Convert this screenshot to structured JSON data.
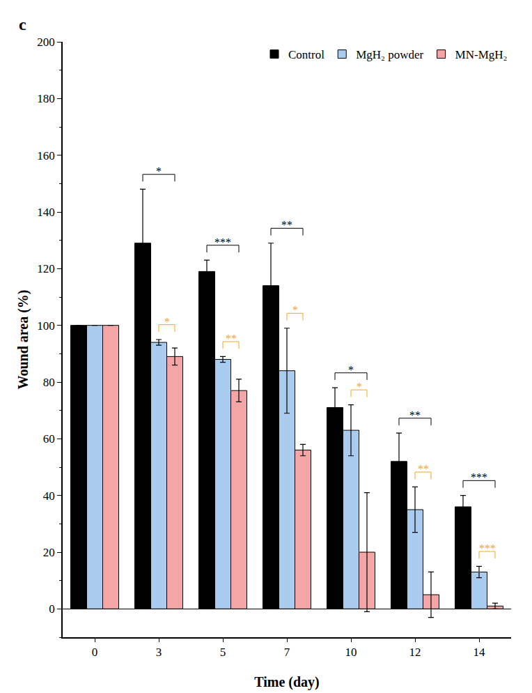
{
  "chart_data": {
    "type": "bar",
    "panel_label": "c",
    "x_label": "Time (day)",
    "y_label": "Wound area (%)",
    "categories": [
      "0",
      "3",
      "5",
      "7",
      "10",
      "12",
      "14"
    ],
    "series": [
      {
        "name": "Control",
        "color": "#000000",
        "values": [
          100,
          129,
          119,
          114,
          71,
          52,
          36
        ],
        "errors": [
          0,
          19,
          4,
          15,
          7,
          10,
          4
        ]
      },
      {
        "name": "MgH₂ powder",
        "color": "#a9cbee",
        "values": [
          100,
          94,
          88,
          84,
          63,
          35,
          13
        ],
        "errors": [
          0,
          1,
          1,
          15,
          9,
          8,
          2
        ]
      },
      {
        "name": "MN-MgH₂",
        "color": "#f4a6a6",
        "values": [
          100,
          89,
          77,
          56,
          20,
          5,
          1
        ],
        "errors": [
          0,
          3,
          4,
          2,
          21,
          8,
          1
        ]
      }
    ],
    "significance": [
      {
        "category": "3",
        "pair": [
          "Control",
          "MN-MgH₂"
        ],
        "text": "*",
        "color": "#000000"
      },
      {
        "category": "5",
        "pair": [
          "Control",
          "MN-MgH₂"
        ],
        "text": "***",
        "color": "#000000"
      },
      {
        "category": "7",
        "pair": [
          "Control",
          "MN-MgH₂"
        ],
        "text": "**",
        "color": "#000000"
      },
      {
        "category": "10",
        "pair": [
          "Control",
          "MN-MgH₂"
        ],
        "text": "*",
        "color": "#000000"
      },
      {
        "category": "12",
        "pair": [
          "Control",
          "MN-MgH₂"
        ],
        "text": "**",
        "color": "#000000"
      },
      {
        "category": "14",
        "pair": [
          "Control",
          "MN-MgH₂"
        ],
        "text": "***",
        "color": "#000000"
      },
      {
        "category": "3",
        "pair": [
          "MgH₂ powder",
          "MN-MgH₂"
        ],
        "text": "*",
        "color": "#f5a623"
      },
      {
        "category": "5",
        "pair": [
          "MgH₂ powder",
          "MN-MgH₂"
        ],
        "text": "**",
        "color": "#f5a623"
      },
      {
        "category": "7",
        "pair": [
          "MgH₂ powder",
          "MN-MgH₂"
        ],
        "text": "*",
        "color": "#f5a623"
      },
      {
        "category": "10",
        "pair": [
          "MgH₂ powder",
          "MN-MgH₂"
        ],
        "text": "*",
        "color": "#f5a623"
      },
      {
        "category": "12",
        "pair": [
          "MgH₂ powder",
          "MN-MgH₂"
        ],
        "text": "**",
        "color": "#f5a623"
      },
      {
        "category": "14",
        "pair": [
          "MgH₂ powder",
          "MN-MgH₂"
        ],
        "text": "***",
        "color": "#f5a623"
      }
    ],
    "ylim": [
      -10,
      200
    ],
    "yticks": [
      0,
      20,
      40,
      60,
      80,
      100,
      120,
      140,
      160,
      180,
      200
    ],
    "legend": "upper right",
    "grid": false
  }
}
